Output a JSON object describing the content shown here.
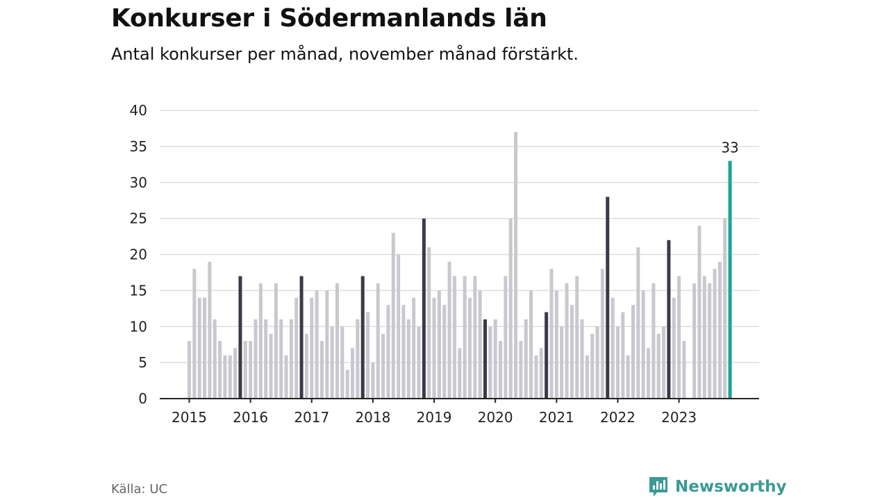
{
  "header": {
    "title": "Konkurser i Södermanlands län",
    "subtitle": "Antal konkurser per månad, november månad förstärkt."
  },
  "footer": {
    "source": "Källa: UC",
    "brand": "Newsworthy"
  },
  "colors": {
    "normal": "#c8c8ce",
    "november": "#3b3a48",
    "latest": "#18a596",
    "brand": "#3a9a94",
    "grid": "#dddddd",
    "axis": "#222222"
  },
  "chart_data": {
    "type": "bar",
    "title": "Konkurser i Södermanlands län",
    "subtitle": "Antal konkurser per månad, november månad förstärkt.",
    "xlabel": "",
    "ylabel": "",
    "ylim": [
      0,
      40
    ],
    "yticks": [
      0,
      5,
      10,
      15,
      20,
      25,
      30,
      35,
      40
    ],
    "xticks": [
      "2015",
      "2016",
      "2017",
      "2018",
      "2019",
      "2020",
      "2021",
      "2022",
      "2023"
    ],
    "grid": true,
    "highlight": "november",
    "annotation": {
      "period": "2023-11",
      "text": "33"
    },
    "series": [
      {
        "year": "2015",
        "values": [
          8,
          18,
          14,
          14,
          19,
          11,
          8,
          6,
          6,
          7,
          17,
          8
        ]
      },
      {
        "year": "2016",
        "values": [
          8,
          11,
          16,
          11,
          9,
          16,
          11,
          6,
          11,
          14,
          17,
          9
        ]
      },
      {
        "year": "2017",
        "values": [
          14,
          15,
          8,
          15,
          10,
          16,
          10,
          4,
          7,
          11,
          17,
          12
        ]
      },
      {
        "year": "2018",
        "values": [
          5,
          16,
          9,
          13,
          23,
          20,
          13,
          11,
          14,
          10,
          25,
          21
        ]
      },
      {
        "year": "2019",
        "values": [
          14,
          15,
          13,
          19,
          17,
          7,
          17,
          14,
          17,
          15,
          11,
          10
        ]
      },
      {
        "year": "2020",
        "values": [
          11,
          8,
          17,
          25,
          37,
          8,
          11,
          15,
          6,
          7,
          12,
          18
        ]
      },
      {
        "year": "2021",
        "values": [
          15,
          10,
          16,
          13,
          17,
          11,
          6,
          9,
          10,
          18,
          28,
          14
        ]
      },
      {
        "year": "2022",
        "values": [
          10,
          12,
          6,
          13,
          21,
          15,
          7,
          16,
          9,
          10,
          22,
          14
        ]
      },
      {
        "year": "2023",
        "values": [
          17,
          8,
          0,
          16,
          24,
          17,
          16,
          18,
          19,
          25,
          33
        ]
      }
    ]
  }
}
